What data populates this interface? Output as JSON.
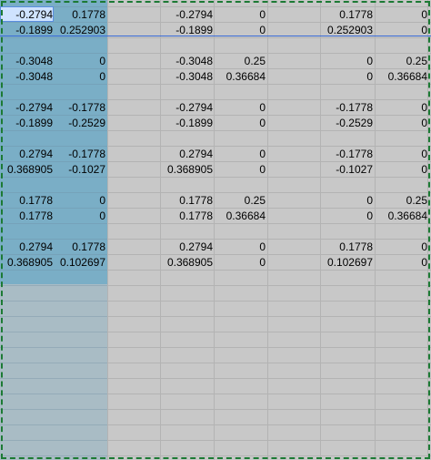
{
  "rows": [
    [
      "-0.2794",
      "0.1778",
      "-0.2794",
      "0",
      "0.1778",
      "0"
    ],
    [
      "-0.1899",
      "0.252903",
      "-0.1899",
      "0",
      "0.252903",
      "0"
    ],
    [
      "",
      "",
      "",
      "",
      "",
      ""
    ],
    [
      "-0.3048",
      "0",
      "-0.3048",
      "0.25",
      "0",
      "0.25"
    ],
    [
      "-0.3048",
      "0",
      "-0.3048",
      "0.36684",
      "0",
      "0.36684"
    ],
    [
      "",
      "",
      "",
      "",
      "",
      ""
    ],
    [
      "-0.2794",
      "-0.1778",
      "-0.2794",
      "0",
      "-0.1778",
      "0"
    ],
    [
      "-0.1899",
      "-0.2529",
      "-0.1899",
      "0",
      "-0.2529",
      "0"
    ],
    [
      "",
      "",
      "",
      "",
      "",
      ""
    ],
    [
      "0.2794",
      "-0.1778",
      "0.2794",
      "0",
      "-0.1778",
      "0"
    ],
    [
      "0.368905",
      "-0.1027",
      "0.368905",
      "0",
      "-0.1027",
      "0"
    ],
    [
      "",
      "",
      "",
      "",
      "",
      ""
    ],
    [
      "0.1778",
      "0",
      "0.1778",
      "0.25",
      "0",
      "0.25"
    ],
    [
      "0.1778",
      "0",
      "0.1778",
      "0.36684",
      "0",
      "0.36684"
    ],
    [
      "",
      "",
      "",
      "",
      "",
      ""
    ],
    [
      "0.2794",
      "0.1778",
      "0.2794",
      "0",
      "0.1778",
      "0"
    ],
    [
      "0.368905",
      "0.102697",
      "0.368905",
      "0",
      "0.102697",
      "0"
    ]
  ],
  "colors": {
    "sheet_bg": "#c8c8c8",
    "selection_fill": "#7aaec6",
    "selection_empty": "#a9bcc5",
    "marquee": "#1c7a34",
    "row_separator": "#3a6bd6"
  }
}
